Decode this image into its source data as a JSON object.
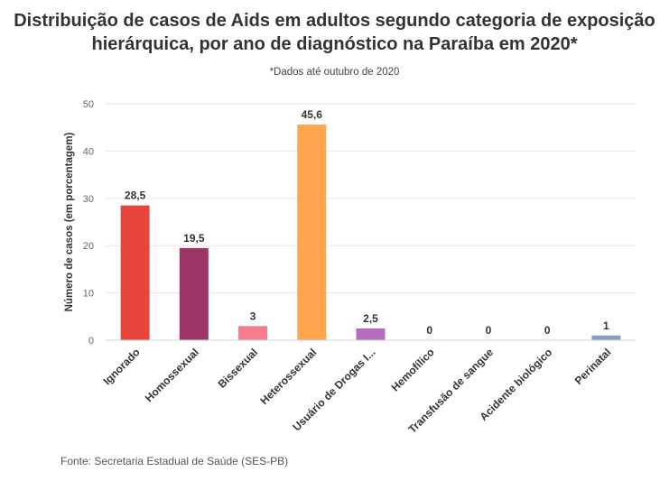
{
  "chart_data": {
    "type": "bar",
    "title": "Distribuição de casos de Aids em adultos segundo categoria de exposição hierárquica, por ano de diagnóstico na Paraíba em 2020*",
    "subtitle": "*Dados até outubro de 2020",
    "ylabel": "Número de casos (em porcentagem)",
    "xlabel": "",
    "ylim": [
      0,
      50
    ],
    "yticks": [
      0,
      10,
      20,
      30,
      40,
      50
    ],
    "categories": [
      "Ignorado",
      "Homossexual",
      "Bissexual",
      "Heterossexual",
      "Usuário de Drogas I...",
      "Hemofílico",
      "Transfusão de sangue",
      "Acidente biológico",
      "Perinatal"
    ],
    "values": [
      28.5,
      19.5,
      3,
      45.6,
      2.5,
      0,
      0,
      0,
      1
    ],
    "value_labels": [
      "28,5",
      "19,5",
      "3",
      "45,6",
      "2,5",
      "0",
      "0",
      "0",
      "1"
    ],
    "colors": [
      "#e8463c",
      "#9b3566",
      "#f47f8a",
      "#ffa54f",
      "#b56dbe",
      "#cccccc",
      "#cccccc",
      "#cccccc",
      "#8a9db8"
    ],
    "grid": true,
    "legend": "none"
  },
  "source": "Fonte: Secretaria Estadual de Saúde (SES-PB)"
}
